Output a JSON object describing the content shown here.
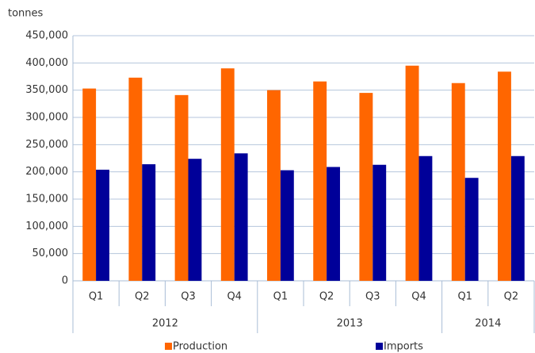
{
  "chart_data": {
    "type": "bar",
    "y_label": "tonnes",
    "groups": [
      {
        "label": "2012",
        "categories": [
          "Q1",
          "Q2",
          "Q3",
          "Q4"
        ]
      },
      {
        "label": "2013",
        "categories": [
          "Q1",
          "Q2",
          "Q3",
          "Q4"
        ]
      },
      {
        "label": "2014",
        "categories": [
          "Q1",
          "Q2"
        ]
      }
    ],
    "series": [
      {
        "name": "Production",
        "color": "#ff6600",
        "values": [
          353000,
          373000,
          341000,
          390000,
          350000,
          366000,
          345000,
          395000,
          363000,
          384000
        ]
      },
      {
        "name": "Imports",
        "color": "#000099",
        "values": [
          204000,
          214000,
          224000,
          234000,
          203000,
          209000,
          213000,
          229000,
          189000,
          229000
        ]
      }
    ],
    "ylim": [
      0,
      450000
    ],
    "yticks": [
      0,
      {
        "value": 50000,
        "label": "50,000"
      },
      {
        "value": 100000,
        "label": "100,000"
      },
      {
        "value": 150000,
        "label": "150,000"
      },
      {
        "value": 200000,
        "label": "200,000"
      },
      {
        "value": 250000,
        "label": "250,000"
      },
      {
        "value": 300000,
        "label": "300,000"
      },
      {
        "value": 350000,
        "label": "350,000"
      },
      {
        "value": 400000,
        "label": "400,000"
      },
      {
        "value": 450000,
        "label": "450,000"
      }
    ],
    "grid": true,
    "legend": "bottom"
  }
}
